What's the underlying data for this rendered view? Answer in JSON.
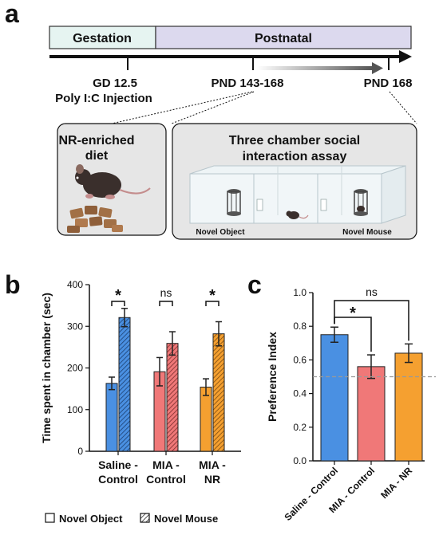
{
  "panel_a": {
    "letter": "a",
    "timeline": {
      "gestation_label": "Gestation",
      "postnatal_label": "Postnatal",
      "gd_line1": "GD 12.5",
      "gd_line2": "Poly I:C Injection",
      "pnd_range": "PND 143-168",
      "pnd_end": "PND 168"
    },
    "diet_box": {
      "line1": "NR-enriched",
      "line2": "diet"
    },
    "assay_box": {
      "line1": "Three chamber social",
      "line2": "interaction assay",
      "left_label": "Novel Object",
      "right_label": "Novel Mouse"
    },
    "colors": {
      "gestation": "#e6f4f1",
      "postnatal": "#dcd9ee",
      "box": "#e6e6e6"
    }
  },
  "panel_b": {
    "letter": "b"
  },
  "panel_c": {
    "letter": "c"
  },
  "chart_data": [
    {
      "type": "bar",
      "panel": "b",
      "ylabel": "Time spent in chamber  (sec)",
      "ylim": [
        0,
        400
      ],
      "yticks": [
        0,
        100,
        200,
        300,
        400
      ],
      "categories": [
        {
          "line1": "Saline -",
          "line2": "Control",
          "color": "#4a90e2"
        },
        {
          "line1": "MIA -",
          "line2": "Control",
          "color": "#f07878"
        },
        {
          "line1": "MIA -",
          "line2": "NR",
          "color": "#f5a030"
        }
      ],
      "series": [
        {
          "name": "Novel Object",
          "pattern": "solid",
          "values": [
            163,
            191,
            154
          ],
          "errors": [
            15,
            34,
            20
          ]
        },
        {
          "name": "Novel Mouse",
          "pattern": "hatched",
          "values": [
            321,
            259,
            282
          ],
          "errors": [
            22,
            28,
            29
          ]
        }
      ],
      "significance": [
        "*",
        "ns",
        "*"
      ],
      "legend": "bottom"
    },
    {
      "type": "bar",
      "panel": "c",
      "ylabel": "Preference Index",
      "ylim": [
        0,
        1.0
      ],
      "yticks": [
        "0.0",
        "0.2",
        "0.4",
        "0.6",
        "0.8",
        "1.0"
      ],
      "categories": [
        "Saline - Control",
        "MIA - Control",
        "MIA - NR"
      ],
      "colors": [
        "#4a90e2",
        "#f07878",
        "#f5a030"
      ],
      "values": [
        0.75,
        0.56,
        0.64
      ],
      "errors": [
        0.045,
        0.07,
        0.055
      ],
      "reference_line": 0.5,
      "comparisons": [
        {
          "from": 0,
          "to": 1,
          "label": "*"
        },
        {
          "from": 0,
          "to": 2,
          "label": "ns"
        }
      ]
    }
  ]
}
